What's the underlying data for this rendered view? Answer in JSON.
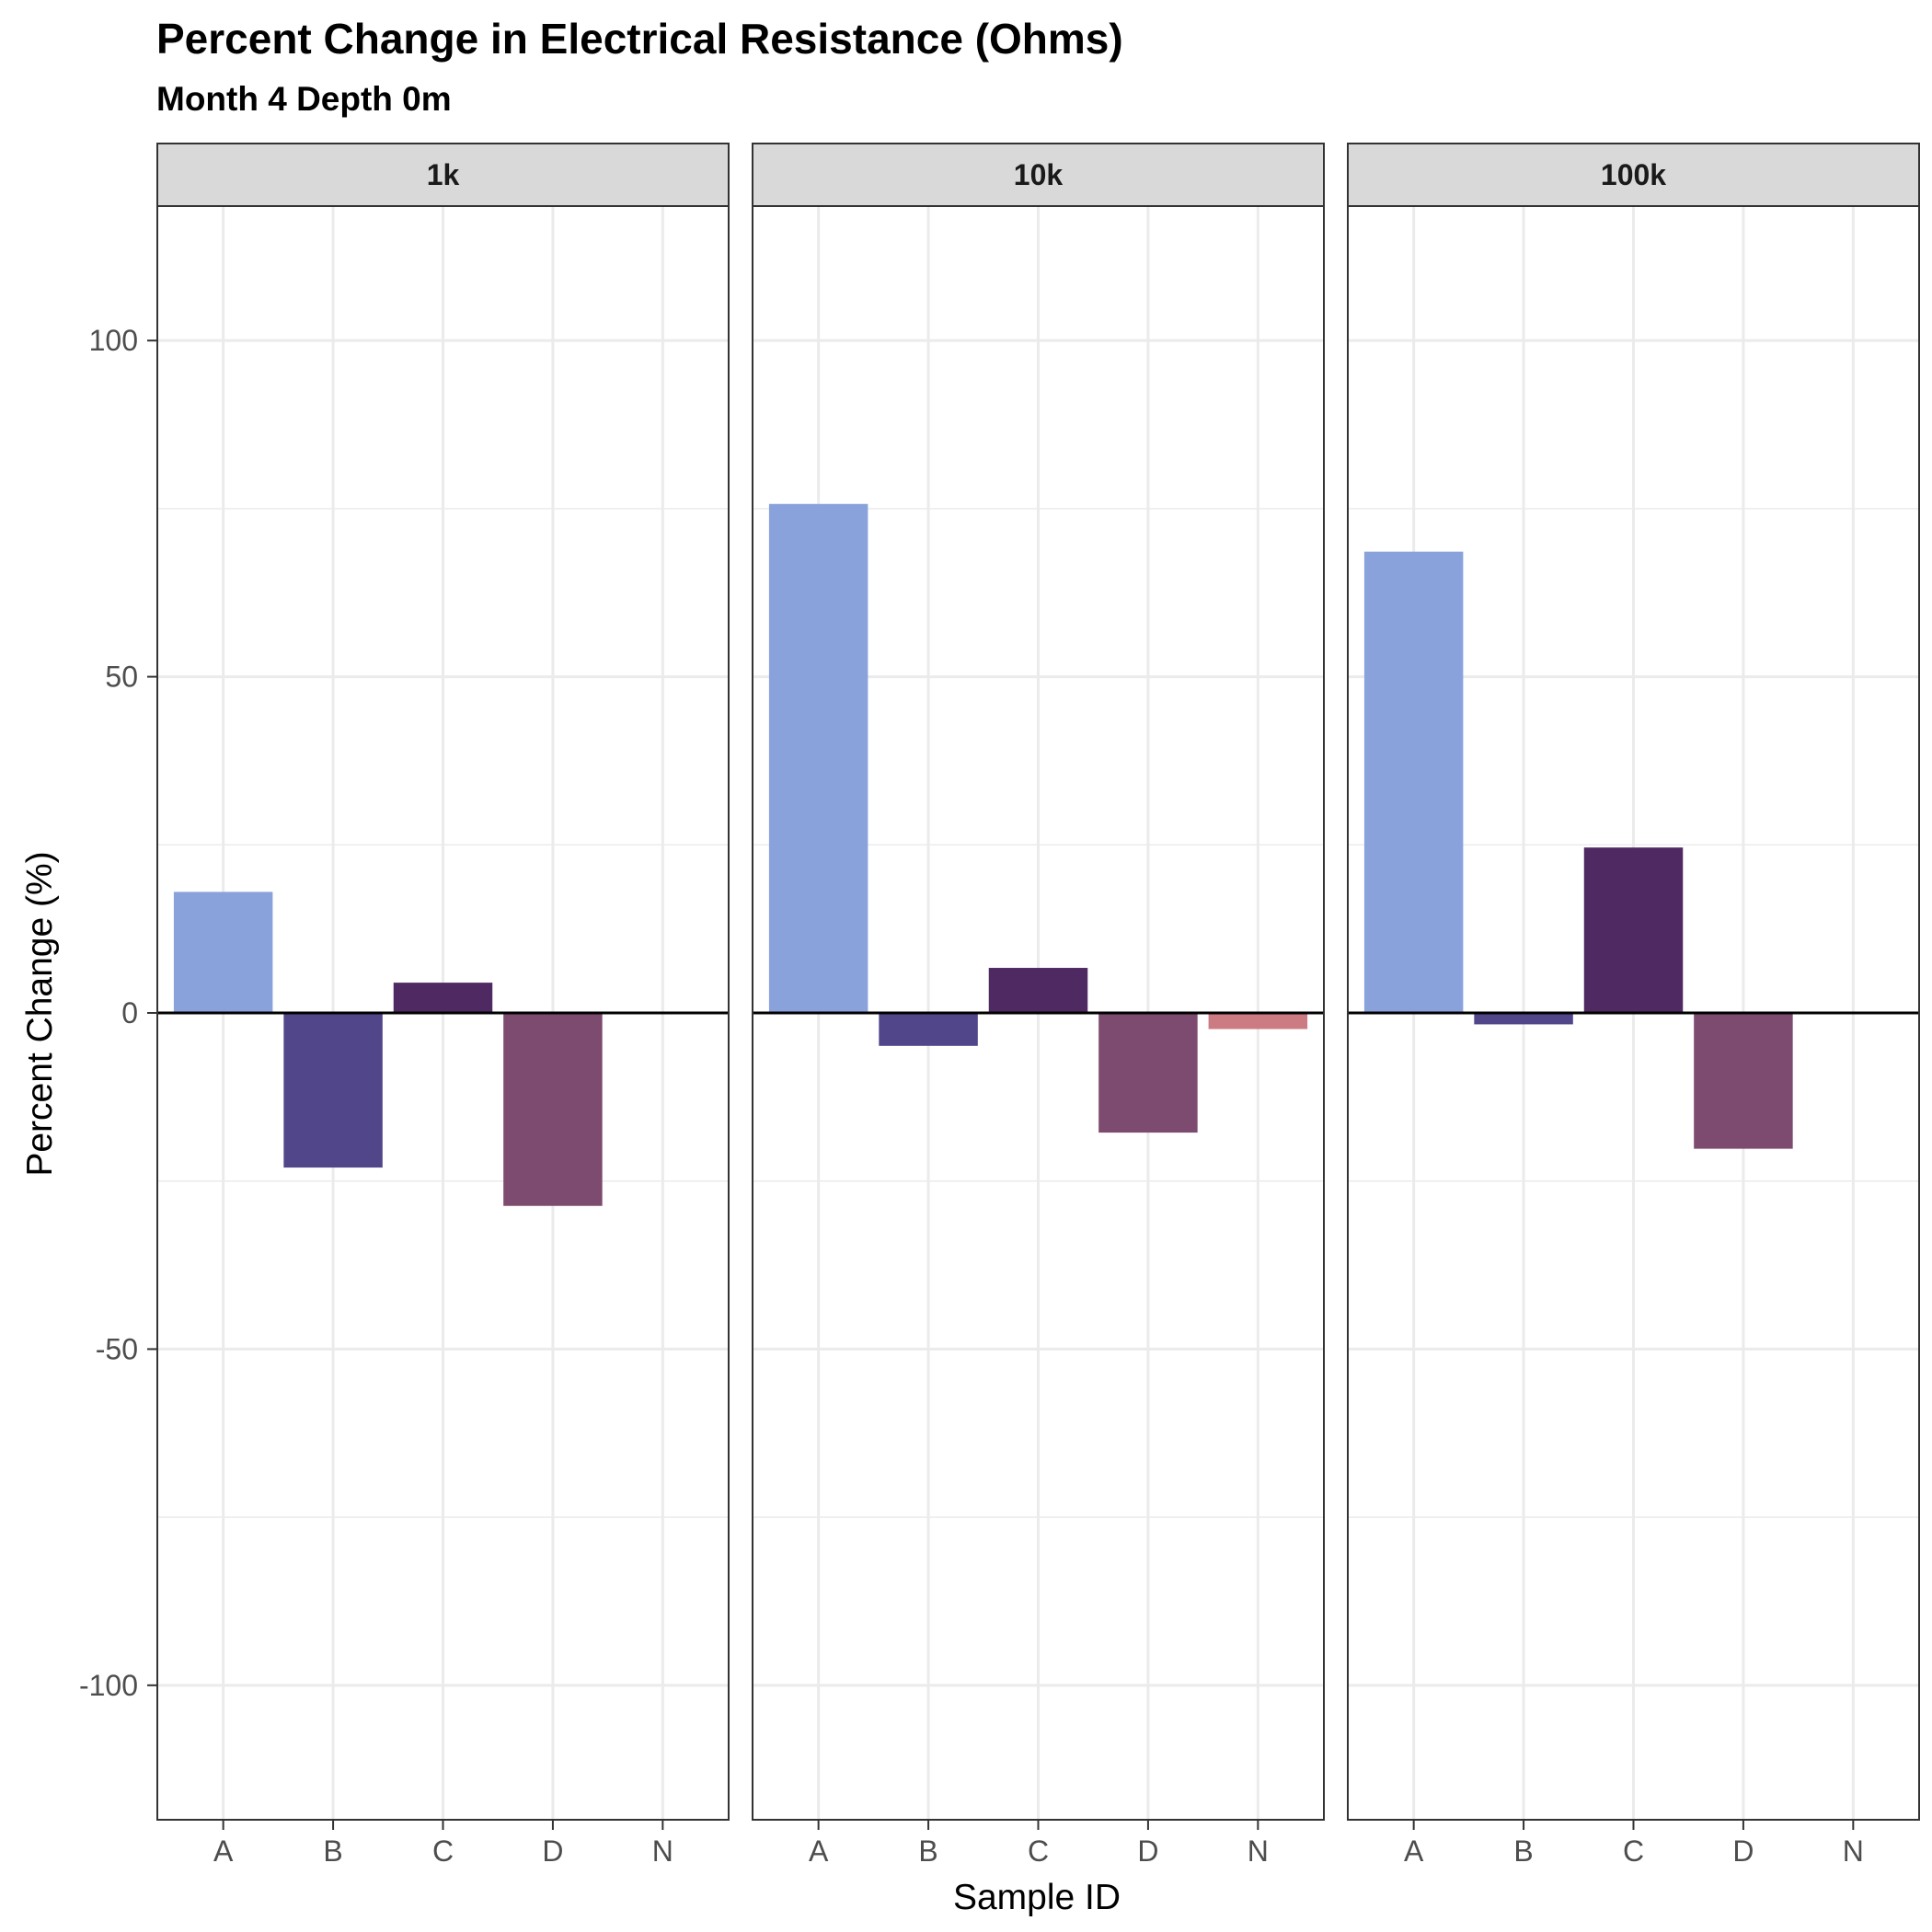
{
  "chart_data": {
    "type": "bar",
    "title": "Percent Change in Electrical Resistance (Ohms)",
    "subtitle": "Month 4 Depth 0m",
    "xlabel": "Sample ID",
    "ylabel": "Percent Change (%)",
    "ylim": [
      -120,
      120
    ],
    "yticks": [
      -100,
      -50,
      0,
      50,
      100
    ],
    "ytick_labels": [
      "-100",
      "-50",
      "0",
      "50",
      "100"
    ],
    "categories": [
      "A",
      "B",
      "C",
      "D",
      "N"
    ],
    "category_colors": {
      "A": "#8aa2dc",
      "B": "#52468a",
      "C": "#4f2962",
      "D": "#7d4b70",
      "N": "#cd7b83"
    },
    "grid": true,
    "zero_line": true,
    "facets": [
      {
        "label": "1k",
        "values": [
          18,
          -23,
          4.5,
          -28.7,
          null
        ]
      },
      {
        "label": "10k",
        "values": [
          75.7,
          -4.9,
          6.7,
          -17.8,
          -2.4
        ]
      },
      {
        "label": "100k",
        "values": [
          68.6,
          -1.7,
          24.6,
          -20.2,
          null
        ]
      }
    ]
  }
}
